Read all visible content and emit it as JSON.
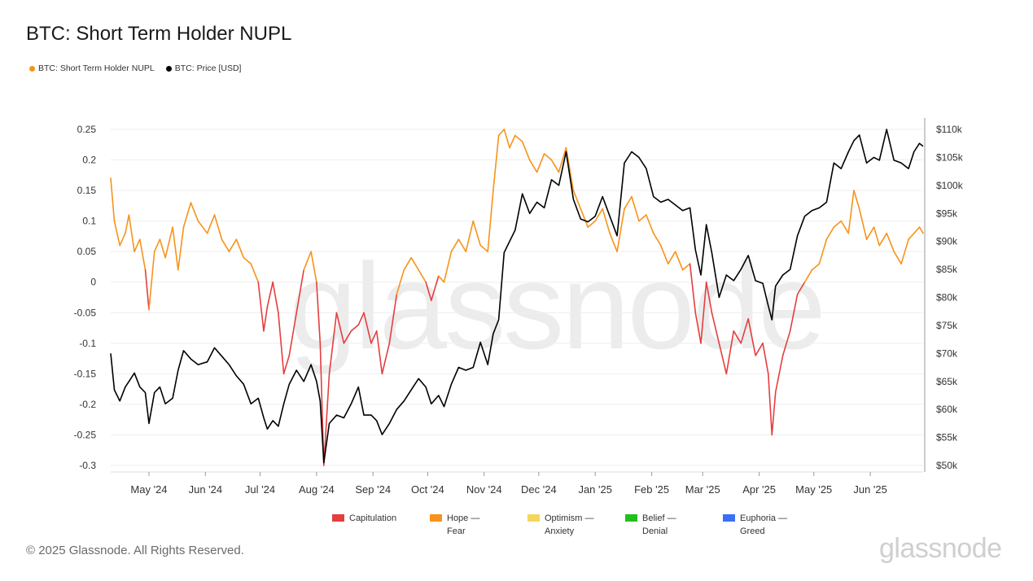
{
  "title": "BTC: Short Term Holder NUPL",
  "legend": [
    {
      "label": "BTC: Short Term Holder NUPL",
      "color": "#f7931a"
    },
    {
      "label": "BTC: Price [USD]",
      "color": "#000000"
    }
  ],
  "bands": [
    {
      "line1": "Capitulation",
      "line2": "",
      "color": "#e53e3e"
    },
    {
      "line1": "Hope —",
      "line2": "Fear",
      "color": "#f7931a"
    },
    {
      "line1": "Optimism —",
      "line2": "Anxiety",
      "color": "#f6d55c"
    },
    {
      "line1": "Belief —",
      "line2": "Denial",
      "color": "#22c01d"
    },
    {
      "line1": "Euphoria —",
      "line2": "Greed",
      "color": "#3b6ff5"
    }
  ],
  "copyright": "© 2025 Glassnode. All Rights Reserved.",
  "brand": "glassnode",
  "watermark": "glassnode",
  "chart_data": {
    "type": "line",
    "title": "BTC: Short Term Holder NUPL",
    "grid": true,
    "legend_position": "top-left",
    "x_ticks": [
      "May '24",
      "Jun '24",
      "Jul '24",
      "Aug '24",
      "Sep '24",
      "Oct '24",
      "Nov '24",
      "Dec '24",
      "Jan '25",
      "Feb '25",
      "Mar '25",
      "Apr '25",
      "May '25",
      "Jun '25"
    ],
    "xlim": [
      "2024-04-10",
      "2025-06-30"
    ],
    "y_left": {
      "ylim": [
        -0.3,
        0.25
      ],
      "ticks": [
        0.25,
        0.2,
        0.15,
        0.1,
        0.05,
        0,
        -0.05,
        -0.1,
        -0.15,
        -0.2,
        -0.25,
        -0.3
      ]
    },
    "y_right": {
      "ylim": [
        50000,
        110000
      ],
      "ticks": [
        110000,
        105000,
        100000,
        95000,
        90000,
        85000,
        80000,
        75000,
        70000,
        65000,
        60000,
        55000,
        50000
      ],
      "tick_labels": [
        "$110k",
        "$105k",
        "$100k",
        "$95k",
        "$90k",
        "$85k",
        "$80k",
        "$75k",
        "$70k",
        "$65k",
        "$60k",
        "$55k",
        "$50k"
      ]
    },
    "series": [
      {
        "name": "BTC: Short Term Holder NUPL",
        "axis": "left",
        "x": [
          "2024-04-10",
          "2024-04-12",
          "2024-04-15",
          "2024-04-18",
          "2024-04-20",
          "2024-04-23",
          "2024-04-26",
          "2024-04-29",
          "2024-05-01",
          "2024-05-04",
          "2024-05-07",
          "2024-05-10",
          "2024-05-14",
          "2024-05-17",
          "2024-05-20",
          "2024-05-24",
          "2024-05-28",
          "2024-06-02",
          "2024-06-06",
          "2024-06-10",
          "2024-06-14",
          "2024-06-18",
          "2024-06-22",
          "2024-06-26",
          "2024-06-30",
          "2024-07-03",
          "2024-07-05",
          "2024-07-08",
          "2024-07-11",
          "2024-07-14",
          "2024-07-17",
          "2024-07-21",
          "2024-07-25",
          "2024-07-29",
          "2024-08-01",
          "2024-08-03",
          "2024-08-05",
          "2024-08-08",
          "2024-08-12",
          "2024-08-16",
          "2024-08-20",
          "2024-08-24",
          "2024-08-27",
          "2024-08-31",
          "2024-09-03",
          "2024-09-06",
          "2024-09-10",
          "2024-09-14",
          "2024-09-18",
          "2024-09-22",
          "2024-09-26",
          "2024-09-30",
          "2024-10-03",
          "2024-10-07",
          "2024-10-10",
          "2024-10-14",
          "2024-10-18",
          "2024-10-22",
          "2024-10-26",
          "2024-10-30",
          "2024-11-03",
          "2024-11-06",
          "2024-11-09",
          "2024-11-12",
          "2024-11-15",
          "2024-11-18",
          "2024-11-22",
          "2024-11-26",
          "2024-11-30",
          "2024-12-04",
          "2024-12-08",
          "2024-12-12",
          "2024-12-16",
          "2024-12-20",
          "2024-12-24",
          "2024-12-28",
          "2025-01-01",
          "2025-01-05",
          "2025-01-09",
          "2025-01-13",
          "2025-01-17",
          "2025-01-21",
          "2025-01-25",
          "2025-01-29",
          "2025-02-02",
          "2025-02-06",
          "2025-02-10",
          "2025-02-14",
          "2025-02-18",
          "2025-02-22",
          "2025-02-25",
          "2025-02-28",
          "2025-03-03",
          "2025-03-06",
          "2025-03-10",
          "2025-03-14",
          "2025-03-18",
          "2025-03-22",
          "2025-03-26",
          "2025-03-30",
          "2025-04-03",
          "2025-04-06",
          "2025-04-08",
          "2025-04-10",
          "2025-04-14",
          "2025-04-18",
          "2025-04-22",
          "2025-04-26",
          "2025-04-30",
          "2025-05-04",
          "2025-05-08",
          "2025-05-12",
          "2025-05-16",
          "2025-05-20",
          "2025-05-23",
          "2025-05-26",
          "2025-05-30",
          "2025-06-03",
          "2025-06-06",
          "2025-06-10",
          "2025-06-14",
          "2025-06-18",
          "2025-06-22",
          "2025-06-25",
          "2025-06-28",
          "2025-06-30"
        ],
        "values": [
          0.17,
          0.1,
          0.06,
          0.08,
          0.11,
          0.05,
          0.07,
          0.02,
          -0.045,
          0.05,
          0.07,
          0.04,
          0.09,
          0.02,
          0.09,
          0.13,
          0.1,
          0.08,
          0.11,
          0.07,
          0.05,
          0.07,
          0.04,
          0.03,
          0.0,
          -0.08,
          -0.04,
          0.0,
          -0.05,
          -0.15,
          -0.12,
          -0.05,
          0.02,
          0.05,
          0.0,
          -0.1,
          -0.3,
          -0.15,
          -0.05,
          -0.1,
          -0.08,
          -0.07,
          -0.05,
          -0.1,
          -0.08,
          -0.15,
          -0.1,
          -0.02,
          0.02,
          0.04,
          0.02,
          0.0,
          -0.03,
          0.01,
          0.0,
          0.05,
          0.07,
          0.05,
          0.1,
          0.06,
          0.05,
          0.15,
          0.24,
          0.25,
          0.22,
          0.24,
          0.23,
          0.2,
          0.18,
          0.21,
          0.2,
          0.18,
          0.22,
          0.15,
          0.12,
          0.09,
          0.1,
          0.12,
          0.08,
          0.05,
          0.12,
          0.14,
          0.1,
          0.11,
          0.08,
          0.06,
          0.03,
          0.05,
          0.02,
          0.03,
          -0.05,
          -0.1,
          0.0,
          -0.05,
          -0.1,
          -0.15,
          -0.08,
          -0.1,
          -0.06,
          -0.12,
          -0.1,
          -0.15,
          -0.25,
          -0.18,
          -0.12,
          -0.08,
          -0.02,
          0.0,
          0.02,
          0.03,
          0.07,
          0.09,
          0.1,
          0.08,
          0.15,
          0.12,
          0.07,
          0.09,
          0.06,
          0.08,
          0.05,
          0.03,
          0.07,
          0.08,
          0.09,
          0.08
        ]
      },
      {
        "name": "BTC: Price [USD]",
        "axis": "right",
        "x": [
          "2024-04-10",
          "2024-04-12",
          "2024-04-15",
          "2024-04-18",
          "2024-04-20",
          "2024-04-23",
          "2024-04-26",
          "2024-04-29",
          "2024-05-01",
          "2024-05-04",
          "2024-05-07",
          "2024-05-10",
          "2024-05-14",
          "2024-05-17",
          "2024-05-20",
          "2024-05-24",
          "2024-05-28",
          "2024-06-02",
          "2024-06-06",
          "2024-06-10",
          "2024-06-14",
          "2024-06-18",
          "2024-06-22",
          "2024-06-26",
          "2024-06-30",
          "2024-07-03",
          "2024-07-05",
          "2024-07-08",
          "2024-07-11",
          "2024-07-14",
          "2024-07-17",
          "2024-07-21",
          "2024-07-25",
          "2024-07-29",
          "2024-08-01",
          "2024-08-03",
          "2024-08-05",
          "2024-08-08",
          "2024-08-12",
          "2024-08-16",
          "2024-08-20",
          "2024-08-24",
          "2024-08-27",
          "2024-08-31",
          "2024-09-03",
          "2024-09-06",
          "2024-09-10",
          "2024-09-14",
          "2024-09-18",
          "2024-09-22",
          "2024-09-26",
          "2024-09-30",
          "2024-10-03",
          "2024-10-07",
          "2024-10-10",
          "2024-10-14",
          "2024-10-18",
          "2024-10-22",
          "2024-10-26",
          "2024-10-30",
          "2024-11-03",
          "2024-11-06",
          "2024-11-09",
          "2024-11-12",
          "2024-11-15",
          "2024-11-18",
          "2024-11-22",
          "2024-11-26",
          "2024-11-30",
          "2024-12-04",
          "2024-12-08",
          "2024-12-12",
          "2024-12-16",
          "2024-12-20",
          "2024-12-24",
          "2024-12-28",
          "2025-01-01",
          "2025-01-05",
          "2025-01-09",
          "2025-01-13",
          "2025-01-17",
          "2025-01-21",
          "2025-01-25",
          "2025-01-29",
          "2025-02-02",
          "2025-02-06",
          "2025-02-10",
          "2025-02-14",
          "2025-02-18",
          "2025-02-22",
          "2025-02-25",
          "2025-02-28",
          "2025-03-03",
          "2025-03-06",
          "2025-03-10",
          "2025-03-14",
          "2025-03-18",
          "2025-03-22",
          "2025-03-26",
          "2025-03-30",
          "2025-04-03",
          "2025-04-06",
          "2025-04-08",
          "2025-04-10",
          "2025-04-14",
          "2025-04-18",
          "2025-04-22",
          "2025-04-26",
          "2025-04-30",
          "2025-05-04",
          "2025-05-08",
          "2025-05-12",
          "2025-05-16",
          "2025-05-20",
          "2025-05-23",
          "2025-05-26",
          "2025-05-30",
          "2025-06-03",
          "2025-06-06",
          "2025-06-10",
          "2025-06-14",
          "2025-06-18",
          "2025-06-22",
          "2025-06-25",
          "2025-06-28",
          "2025-06-30"
        ],
        "values": [
          70000,
          63500,
          61500,
          64000,
          65000,
          66500,
          64000,
          63000,
          57500,
          63000,
          64000,
          61000,
          62000,
          67000,
          70500,
          69000,
          68000,
          68500,
          71000,
          69500,
          68000,
          66000,
          64500,
          61000,
          62000,
          58500,
          56500,
          58000,
          57000,
          61000,
          64500,
          67000,
          65000,
          68000,
          65000,
          61500,
          50500,
          57500,
          59000,
          58500,
          61000,
          64000,
          59000,
          59000,
          58000,
          55500,
          57500,
          60000,
          61500,
          63500,
          65500,
          64000,
          61000,
          62500,
          60500,
          64500,
          67500,
          67000,
          67500,
          72000,
          68000,
          73500,
          76000,
          88000,
          90000,
          92000,
          98500,
          95000,
          97000,
          96000,
          101000,
          100000,
          106000,
          97500,
          94000,
          93500,
          94500,
          98000,
          94500,
          91000,
          104000,
          106000,
          105000,
          103000,
          98000,
          97000,
          97500,
          96500,
          95500,
          96000,
          88500,
          84000,
          93000,
          88000,
          80000,
          84000,
          83000,
          85000,
          87500,
          83000,
          82500,
          78500,
          76000,
          82000,
          84000,
          85000,
          91000,
          94500,
          95500,
          96000,
          97000,
          104000,
          103000,
          106000,
          108000,
          109000,
          104000,
          105000,
          104500,
          110000,
          104500,
          104000,
          103000,
          106000,
          107500,
          107000
        ]
      }
    ]
  }
}
